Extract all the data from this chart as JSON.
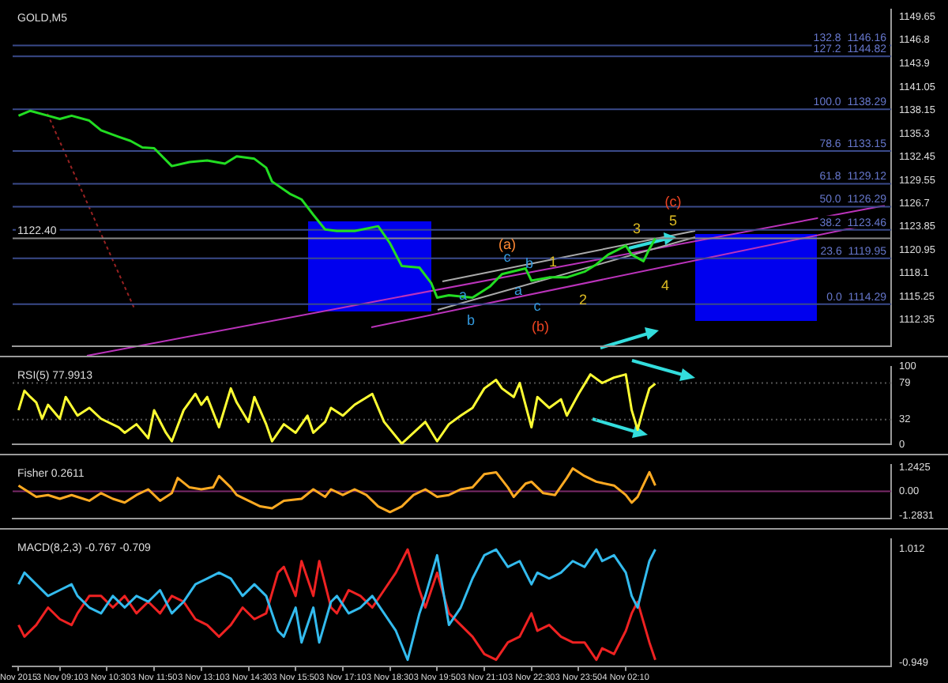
{
  "chart_data": [
    {
      "type": "line",
      "title": "GOLD,M5",
      "ylim": [
        1109.1,
        1150.6
      ],
      "yticks": [
        1112.35,
        1115.25,
        1118.1,
        1120.95,
        1123.85,
        1126.7,
        1129.55,
        1132.45,
        1135.3,
        1138.15,
        1141.05,
        1143.9,
        1146.8,
        1149.65
      ],
      "tick_labels": "y",
      "grid": false,
      "legend": false,
      "categories": [
        null,
        null,
        null,
        null,
        null,
        null,
        null,
        null,
        null,
        null,
        null,
        null,
        null,
        null,
        null,
        null,
        null,
        null,
        null,
        null,
        null,
        null,
        null,
        null,
        null,
        null,
        null,
        null,
        null,
        null,
        null,
        null,
        null,
        null,
        null,
        null,
        null,
        null,
        null,
        null,
        null,
        null,
        null,
        null,
        null,
        null,
        null,
        null,
        null,
        null,
        null,
        null,
        null,
        null,
        null,
        null,
        null,
        null,
        null,
        null,
        null,
        null,
        null,
        null,
        null,
        null,
        null,
        null,
        null,
        null,
        null,
        null,
        null,
        null,
        null,
        null,
        null,
        null,
        null,
        null,
        null,
        null,
        null,
        null,
        null,
        null,
        null,
        null,
        null,
        null,
        null,
        null,
        null,
        null,
        null,
        null,
        null,
        null,
        null,
        null,
        null,
        null,
        null,
        null,
        null,
        null,
        null,
        null,
        null,
        null,
        null,
        null,
        null,
        null,
        null,
        null,
        null,
        null,
        null,
        null,
        null,
        null,
        null,
        null,
        null,
        null,
        null,
        null,
        null,
        null,
        null,
        null,
        null,
        null,
        null,
        null,
        null,
        null,
        null,
        null,
        null,
        null,
        null,
        null,
        null,
        null,
        null,
        null,
        null,
        null
      ],
      "series": [
        {
          "color": "#22dd22",
          "values": [
            null,
            1137.5,
            null,
            1138.1,
            null,
            null,
            1137.5,
            null,
            1137.1,
            null,
            1137.5,
            null,
            null,
            1136.9,
            null,
            1135.7,
            null,
            null,
            1134.9,
            null,
            1134.4,
            null,
            1133.6,
            null,
            1133.5,
            null,
            null,
            1131.3,
            null,
            null,
            1131.8,
            null,
            null,
            1132.0,
            null,
            null,
            1131.6,
            null,
            1132.5,
            null,
            null,
            1132.2,
            null,
            1131.1,
            1129.4,
            null,
            null,
            1127.9,
            null,
            1127.2,
            null,
            1125.3,
            null,
            1123.5,
            null,
            1123.3,
            null,
            null,
            1123.3,
            null,
            null,
            null,
            1123.9,
            null,
            1121.8,
            null,
            1119.0,
            null,
            null,
            1118.8,
            null,
            1116.9,
            1115.1,
            null,
            1115.4,
            null,
            null,
            null,
            1115.1,
            null,
            null,
            1116.5,
            null,
            1118.0,
            null,
            null,
            null,
            1118.7,
            1117.2,
            null,
            null,
            1117.6,
            null,
            null,
            1117.6,
            null,
            null,
            1118.3,
            null,
            1119.2,
            null,
            1120.4,
            null,
            null,
            1121.5,
            1120.4,
            null,
            1119.6,
            1121.1,
            1122.4,
            null,
            null,
            null,
            null,
            null,
            null,
            null,
            null,
            null,
            null,
            null,
            null,
            null,
            null,
            null,
            null,
            null,
            null,
            null,
            null,
            null,
            null,
            null,
            null,
            null,
            null,
            null,
            null,
            null,
            null,
            null,
            null,
            null,
            null,
            null,
            null,
            null,
            null,
            null,
            null
          ]
        }
      ],
      "ref_lines": [
        {
          "axis": "y",
          "value": 1146.16,
          "label": "132.8  1146.16",
          "color": "#3a4a8a"
        },
        {
          "axis": "y",
          "value": 1144.82,
          "label": "127.2  1144.82",
          "color": "#3a4a8a"
        },
        {
          "axis": "y",
          "value": 1138.29,
          "label": "100.0  1138.29",
          "color": "#3a4a8a"
        },
        {
          "axis": "y",
          "value": 1133.15,
          "label": "78.6  1133.15",
          "color": "#3a4a8a"
        },
        {
          "axis": "y",
          "value": 1129.12,
          "label": "61.8  1129.12",
          "color": "#3a4a8a"
        },
        {
          "axis": "y",
          "value": 1126.29,
          "label": "50.0  1126.29",
          "color": "#3a4a8a"
        },
        {
          "axis": "y",
          "value": 1123.46,
          "label": "38.2  1123.46",
          "color": "#3a4a8a"
        },
        {
          "axis": "y",
          "value": 1122.4,
          "label": "1122.40",
          "color": "#888888"
        },
        {
          "axis": "y",
          "value": 1119.95,
          "label": "23.6  1119.95",
          "color": "#3a4a8a"
        },
        {
          "axis": "y",
          "value": 1114.29,
          "label": "0.0  1114.29",
          "color": "#3a4a8a"
        }
      ],
      "annotations": [
        "(a)",
        "(b)",
        "(c)",
        "1",
        "2",
        "3",
        "4",
        "5",
        "a",
        "b",
        "c",
        "b",
        "a",
        "c"
      ]
    },
    {
      "type": "line",
      "title": "RSI(5) 77.9913",
      "ylim": [
        0,
        100
      ],
      "yticks": [
        0,
        32,
        79,
        100
      ],
      "tick_labels": "y",
      "grid": false,
      "legend": false,
      "categories": [
        null,
        null,
        null,
        null,
        null,
        null,
        null,
        null,
        null,
        null,
        null,
        null,
        null,
        null,
        null,
        null,
        null,
        null,
        null,
        null,
        null,
        null,
        null,
        null,
        null,
        null,
        null,
        null,
        null,
        null,
        null,
        null,
        null,
        null,
        null,
        null,
        null,
        null,
        null,
        null,
        null,
        null,
        null,
        null,
        null,
        null,
        null,
        null,
        null,
        null,
        null,
        null,
        null,
        null,
        null,
        null,
        null,
        null,
        null,
        null,
        null,
        null,
        null,
        null,
        null,
        null,
        null,
        null,
        null,
        null,
        null,
        null,
        null,
        null,
        null,
        null,
        null,
        null,
        null,
        null,
        null,
        null,
        null,
        null,
        null,
        null,
        null,
        null,
        null,
        null,
        null,
        null,
        null,
        null,
        null,
        null,
        null,
        null,
        null,
        null,
        null,
        null,
        null,
        null,
        null,
        null,
        null,
        null,
        null,
        null,
        null,
        null,
        null,
        null,
        null,
        null,
        null,
        null,
        null,
        null,
        null,
        null,
        null,
        null,
        null,
        null,
        null,
        null,
        null,
        null,
        null,
        null,
        null,
        null,
        null,
        null,
        null,
        null,
        null,
        null,
        null,
        null,
        null,
        null,
        null,
        null,
        null,
        null,
        null,
        null
      ],
      "series": [
        {
          "color": "#ffff33",
          "values": [
            null,
            44,
            69,
            61,
            54,
            33,
            51,
            null,
            33,
            61,
            null,
            37,
            null,
            47,
            null,
            33,
            null,
            null,
            22,
            15,
            null,
            26,
            null,
            8,
            44,
            null,
            15,
            4,
            null,
            44,
            null,
            65,
            51,
            61,
            null,
            22,
            null,
            72,
            54,
            null,
            29,
            61,
            null,
            26,
            4,
            null,
            26,
            null,
            15,
            null,
            37,
            15,
            null,
            29,
            47,
            null,
            37,
            null,
            51,
            null,
            null,
            65,
            null,
            29,
            null,
            null,
            1,
            null,
            15,
            null,
            29,
            null,
            4,
            null,
            26,
            null,
            37,
            null,
            47,
            null,
            72,
            null,
            83,
            72,
            null,
            61,
            79,
            null,
            22,
            61,
            null,
            47,
            null,
            58,
            37,
            null,
            65,
            null,
            90,
            null,
            79,
            null,
            86,
            null,
            90,
            44,
            19,
            47,
            72,
            78,
            null,
            null,
            null,
            null,
            null,
            null,
            null,
            null,
            null,
            null,
            null,
            null,
            null,
            null,
            null,
            null,
            null,
            null,
            null,
            null,
            null,
            null,
            null,
            null,
            null,
            null,
            null,
            null,
            null,
            null,
            null,
            null,
            null,
            null,
            null,
            null,
            null,
            null,
            null,
            null
          ]
        }
      ],
      "ref_lines": [
        {
          "axis": "y",
          "value": 79,
          "color": "#555555",
          "line_style": "dotted"
        },
        {
          "axis": "y",
          "value": 32,
          "color": "#555555",
          "line_style": "dotted"
        }
      ]
    },
    {
      "type": "line",
      "title": "Fisher 0.2611",
      "ylim": [
        -1.45,
        1.4
      ],
      "yticks": [
        -1.2831,
        {
          "value": 0,
          "label": "0.00"
        },
        1.2425
      ],
      "tick_labels": "y",
      "grid": false,
      "legend": false,
      "categories": [
        null,
        null,
        null,
        null,
        null,
        null,
        null,
        null,
        null,
        null,
        null,
        null,
        null,
        null,
        null,
        null,
        null,
        null,
        null,
        null,
        null,
        null,
        null,
        null,
        null,
        null,
        null,
        null,
        null,
        null,
        null,
        null,
        null,
        null,
        null,
        null,
        null,
        null,
        null,
        null,
        null,
        null,
        null,
        null,
        null,
        null,
        null,
        null,
        null,
        null,
        null,
        null,
        null,
        null,
        null,
        null,
        null,
        null,
        null,
        null,
        null,
        null,
        null,
        null,
        null,
        null,
        null,
        null,
        null,
        null,
        null,
        null,
        null,
        null,
        null,
        null,
        null,
        null,
        null,
        null,
        null,
        null,
        null,
        null,
        null,
        null,
        null,
        null,
        null,
        null,
        null,
        null,
        null,
        null,
        null,
        null,
        null,
        null,
        null,
        null,
        null,
        null,
        null,
        null,
        null,
        null,
        null,
        null,
        null,
        null,
        null,
        null,
        null,
        null,
        null,
        null,
        null,
        null,
        null,
        null,
        null,
        null,
        null,
        null,
        null,
        null,
        null,
        null,
        null,
        null,
        null,
        null,
        null,
        null,
        null,
        null,
        null,
        null,
        null,
        null,
        null,
        null,
        null,
        null,
        null,
        null,
        null,
        null,
        null,
        null
      ],
      "series": [
        {
          "color": "#ffaa22",
          "values": [
            null,
            0.3,
            0.1,
            null,
            -0.3,
            null,
            -0.2,
            null,
            -0.4,
            null,
            -0.2,
            null,
            -0.4,
            -0.5,
            null,
            -0.1,
            null,
            -0.4,
            null,
            -0.6,
            null,
            -0.2,
            null,
            0.1,
            null,
            -0.5,
            null,
            -0.1,
            0.7,
            null,
            0.2,
            null,
            0.1,
            null,
            0.2,
            0.8,
            null,
            0.2,
            -0.2,
            null,
            -0.5,
            null,
            -0.8,
            null,
            -0.9,
            null,
            -0.5,
            null,
            null,
            -0.4,
            null,
            0.1,
            null,
            -0.3,
            0.1,
            null,
            -0.2,
            null,
            0.1,
            null,
            -0.2,
            null,
            -0.8,
            null,
            -1.1,
            null,
            -0.8,
            null,
            -0.2,
            null,
            0.1,
            null,
            -0.3,
            null,
            -0.2,
            null,
            0.1,
            null,
            0.2,
            null,
            0.9,
            null,
            1.0,
            null,
            0.2,
            -0.3,
            null,
            0.4,
            0.5,
            null,
            -0.1,
            null,
            -0.2,
            null,
            0.7,
            1.2,
            null,
            0.8,
            null,
            0.5,
            null,
            null,
            0.3,
            null,
            -0.2,
            -0.6,
            -0.3,
            null,
            1.0,
            0.3,
            null,
            null,
            null,
            null,
            null,
            null,
            null,
            null,
            null,
            null,
            null,
            null,
            null,
            null,
            null,
            null,
            null,
            null,
            null,
            null,
            null,
            null,
            null,
            null,
            null,
            null,
            null,
            null,
            null,
            null,
            null,
            null,
            null,
            null,
            null,
            null,
            null,
            null,
            null,
            null
          ]
        }
      ],
      "ref_lines": [
        {
          "axis": "y",
          "value": 0,
          "color": "#7a2a6a"
        }
      ]
    },
    {
      "type": "line",
      "title": "MACD(8,2,3) -0.767 -0.709",
      "ylim": [
        -1.01,
        1.18
      ],
      "yticks": [
        -0.949,
        1.012
      ],
      "grid": false,
      "legend": false,
      "categories": [
        null,
        "Nov 2015",
        null,
        null,
        null,
        null,
        null,
        null,
        "3 Nov 09:10",
        null,
        null,
        null,
        null,
        null,
        null,
        null,
        "3 Nov 10:30",
        null,
        null,
        null,
        null,
        null,
        null,
        null,
        "3 Nov 11:50",
        null,
        null,
        null,
        null,
        null,
        null,
        null,
        "3 Nov 13:10",
        null,
        null,
        null,
        null,
        null,
        null,
        null,
        "3 Nov 14:30",
        null,
        null,
        null,
        null,
        null,
        null,
        null,
        "3 Nov 15:50",
        null,
        null,
        null,
        null,
        null,
        null,
        null,
        "3 Nov 17:10",
        null,
        null,
        null,
        null,
        null,
        null,
        null,
        "3 Nov 18:30",
        null,
        null,
        null,
        null,
        null,
        null,
        null,
        "3 Nov 19:50",
        null,
        null,
        null,
        null,
        null,
        null,
        null,
        "3 Nov 21:10",
        null,
        null,
        null,
        null,
        null,
        null,
        null,
        "3 Nov 22:30",
        null,
        null,
        null,
        null,
        null,
        null,
        null,
        "3 Nov 23:50",
        null,
        null,
        null,
        null,
        null,
        null,
        null,
        "4 Nov 02:10",
        null,
        null,
        null,
        null,
        null,
        null,
        null,
        null,
        null,
        null,
        null,
        null,
        null,
        null,
        null,
        null,
        null,
        null,
        null,
        null,
        null,
        null,
        null,
        null,
        null,
        null,
        null,
        null,
        null,
        null,
        null,
        null,
        null,
        null,
        null,
        null,
        null,
        null,
        null,
        null,
        null,
        null,
        null,
        null,
        null
      ],
      "series": [
        {
          "color": "#33bbee",
          "values": [
            null,
            0.4,
            0.6,
            null,
            0.4,
            null,
            0.2,
            null,
            0.3,
            null,
            0.4,
            0.2,
            null,
            0.0,
            null,
            -0.1,
            null,
            0.2,
            null,
            0.0,
            null,
            0.2,
            null,
            0.1,
            null,
            0.3,
            null,
            -0.1,
            null,
            0.1,
            null,
            0.4,
            null,
            0.5,
            null,
            0.6,
            null,
            0.5,
            null,
            0.2,
            null,
            0.4,
            null,
            0.2,
            null,
            -0.4,
            -0.5,
            null,
            0.0,
            -0.6,
            null,
            0.0,
            -0.6,
            null,
            0.1,
            0.2,
            null,
            -0.1,
            null,
            0.0,
            null,
            0.2,
            null,
            -0.1,
            null,
            -0.4,
            null,
            -0.9,
            null,
            -0.1,
            0.2,
            null,
            0.9,
            null,
            -0.3,
            null,
            0.0,
            null,
            0.5,
            null,
            0.9,
            null,
            1.0,
            null,
            0.7,
            null,
            0.8,
            null,
            0.4,
            0.6,
            null,
            0.5,
            null,
            0.6,
            null,
            0.8,
            null,
            0.7,
            null,
            1.0,
            0.8,
            null,
            0.9,
            null,
            0.6,
            0.2,
            0.0,
            null,
            0.8,
            1.0,
            null,
            null,
            null,
            null,
            null,
            null,
            null,
            null,
            null,
            null,
            null,
            null,
            null,
            null,
            null,
            null,
            null,
            null,
            null,
            null,
            null,
            null,
            null,
            null,
            null,
            null,
            null,
            null,
            null,
            null,
            null,
            null,
            null,
            null,
            null,
            null,
            null,
            null,
            null,
            null
          ]
        },
        {
          "color": "#ee2222",
          "values": [
            null,
            -0.3,
            -0.5,
            null,
            -0.3,
            null,
            0.0,
            null,
            -0.2,
            null,
            -0.3,
            -0.1,
            null,
            0.2,
            null,
            0.2,
            null,
            0.0,
            null,
            0.2,
            null,
            -0.1,
            null,
            0.1,
            null,
            -0.1,
            null,
            0.2,
            null,
            0.1,
            null,
            -0.2,
            null,
            -0.3,
            null,
            -0.5,
            null,
            -0.3,
            null,
            0.0,
            null,
            -0.2,
            null,
            -0.1,
            null,
            0.6,
            0.7,
            null,
            0.2,
            0.8,
            null,
            0.2,
            0.8,
            null,
            0.0,
            -0.1,
            null,
            0.3,
            null,
            0.2,
            null,
            0.0,
            null,
            0.3,
            null,
            0.6,
            null,
            1.0,
            null,
            0.3,
            0.0,
            null,
            0.6,
            null,
            -0.1,
            null,
            -0.3,
            null,
            -0.5,
            null,
            -0.8,
            null,
            -0.9,
            null,
            -0.6,
            null,
            -0.5,
            null,
            -0.1,
            -0.4,
            null,
            -0.3,
            null,
            -0.5,
            null,
            -0.6,
            null,
            -0.6,
            null,
            -0.9,
            -0.7,
            null,
            -0.8,
            null,
            -0.4,
            -0.1,
            0.1,
            null,
            -0.6,
            -0.9,
            null,
            null,
            null,
            null,
            null,
            null,
            null,
            null,
            null,
            null,
            null,
            null,
            null,
            null,
            null,
            null,
            null,
            null,
            null,
            null,
            null,
            null,
            null,
            null,
            null,
            null,
            null,
            null,
            null,
            null,
            null,
            null,
            null,
            null,
            null,
            null,
            null,
            null,
            null,
            null
          ]
        }
      ]
    }
  ]
}
